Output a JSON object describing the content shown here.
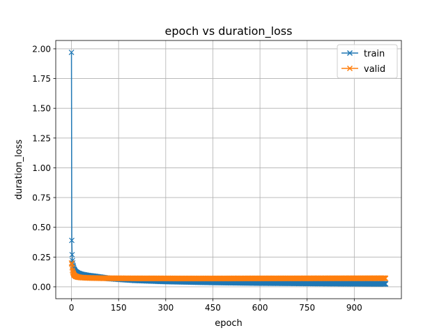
{
  "chart_data": {
    "type": "line",
    "title": "epoch vs duration_loss",
    "xlabel": "epoch",
    "ylabel": "duration_loss",
    "xlim": [
      -50,
      1050
    ],
    "ylim": [
      -0.1,
      2.07
    ],
    "xticks": [
      0,
      150,
      300,
      450,
      600,
      750,
      900
    ],
    "xtick_labels": [
      "0",
      "150",
      "300",
      "450",
      "600",
      "750",
      "900"
    ],
    "yticks": [
      0.0,
      0.25,
      0.5,
      0.75,
      1.0,
      1.25,
      1.5,
      1.75,
      2.0
    ],
    "ytick_labels": [
      "0.00",
      "0.25",
      "0.50",
      "0.75",
      "1.00",
      "1.25",
      "1.50",
      "1.75",
      "2.00"
    ],
    "grid": true,
    "legend_position": "top-right",
    "marker": "x",
    "epochs_last": 1000,
    "series": [
      {
        "name": "train",
        "color": "#1f77b4",
        "key_points": [
          [
            0,
            1.97
          ],
          [
            1,
            0.39
          ],
          [
            2,
            0.27
          ],
          [
            3,
            0.22
          ],
          [
            5,
            0.18
          ],
          [
            8,
            0.15
          ],
          [
            12,
            0.13
          ],
          [
            20,
            0.115
          ],
          [
            30,
            0.105
          ],
          [
            50,
            0.095
          ],
          [
            80,
            0.085
          ],
          [
            120,
            0.07
          ],
          [
            200,
            0.055
          ],
          [
            300,
            0.045
          ],
          [
            450,
            0.037
          ],
          [
            600,
            0.032
          ],
          [
            800,
            0.028
          ],
          [
            1000,
            0.025
          ]
        ]
      },
      {
        "name": "valid",
        "color": "#ff7f0e",
        "key_points": [
          [
            0,
            0.2
          ],
          [
            1,
            0.19
          ],
          [
            2,
            0.16
          ],
          [
            3,
            0.14
          ],
          [
            5,
            0.12
          ],
          [
            8,
            0.1
          ],
          [
            12,
            0.09
          ],
          [
            20,
            0.082
          ],
          [
            30,
            0.078
          ],
          [
            50,
            0.075
          ],
          [
            100,
            0.072
          ],
          [
            200,
            0.071
          ],
          [
            400,
            0.07
          ],
          [
            700,
            0.071
          ],
          [
            1000,
            0.072
          ]
        ]
      }
    ]
  }
}
